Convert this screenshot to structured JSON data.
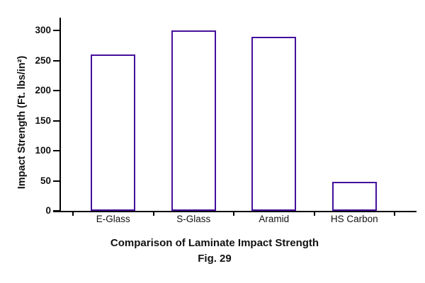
{
  "chart_data": {
    "type": "bar",
    "categories": [
      "E-Glass",
      "S-Glass",
      "Aramid",
      "HS Carbon"
    ],
    "values": [
      260,
      300,
      290,
      48
    ],
    "title": "Comparison of Laminate Impact Strength",
    "figure_label": "Fig. 29",
    "xlabel": "",
    "ylabel": "Impact Strength (Ft. lbs/in²)",
    "ylim": [
      0,
      300
    ],
    "yticks": [
      0,
      50,
      100,
      150,
      200,
      250,
      300
    ],
    "grid": false,
    "legend": false,
    "colors": {
      "bar_fill": "#ffffff",
      "bar_border": "#450f9c",
      "axis": "#000000",
      "text": "#111111",
      "background": "#ffffff"
    }
  }
}
